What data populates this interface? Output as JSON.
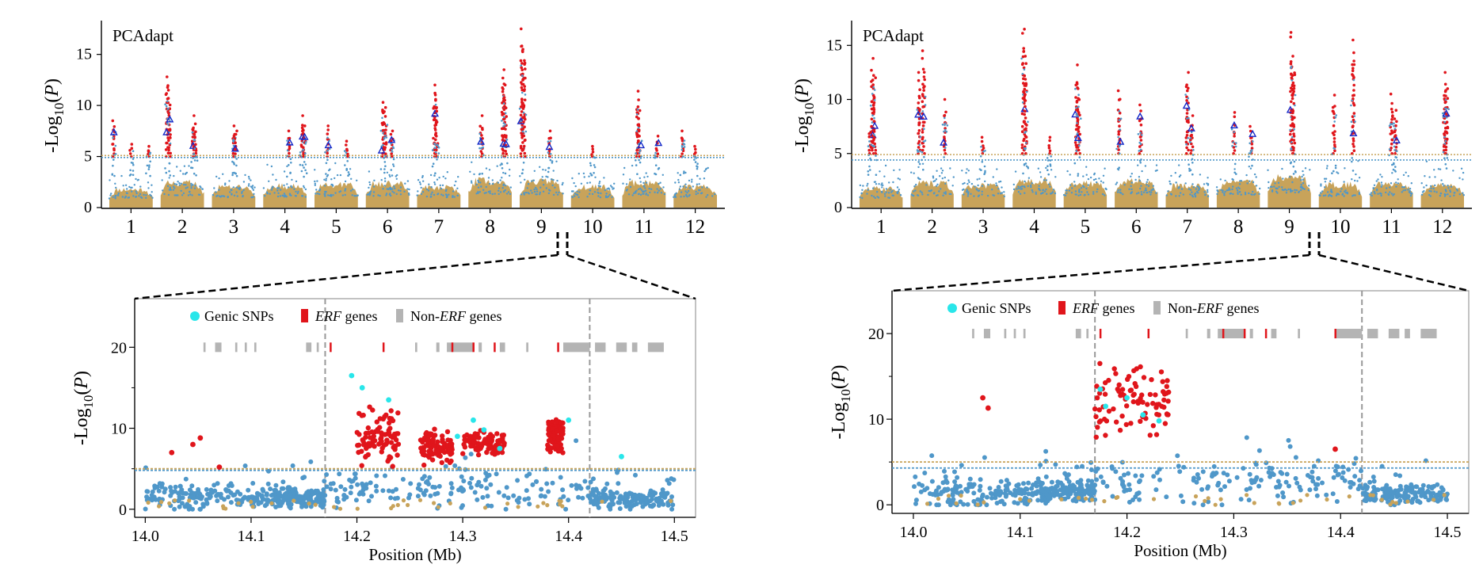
{
  "colors": {
    "background_snp": "#c8a35a",
    "snp": "#4f97c9",
    "significant": "#e0151b",
    "candidate_triangle": "#1428c8",
    "genic_snp": "#29e6ea",
    "erf_gene": "#e0151b",
    "non_erf_gene": "#b4b4b4",
    "threshold_blue": "#4f97c9",
    "threshold_tan": "#c8a35a",
    "boundary": "#999999"
  },
  "chart_data": [
    {
      "id": "left-manhattan",
      "type": "scatter",
      "title": "PCAdapt",
      "ylabel": "-Log10(P)",
      "ylim": [
        0,
        18
      ],
      "y_ticks": [
        0,
        5,
        10,
        15
      ],
      "x_tick_labels": [
        "1",
        "2",
        "3",
        "4",
        "5",
        "6",
        "7",
        "8",
        "9",
        "10",
        "11",
        "12"
      ],
      "thresholds": [
        4.9,
        5.1
      ],
      "chromosomes": [
        {
          "label": "1",
          "band": 1.75,
          "peaks": [
            [
              0.1,
              8.5
            ],
            [
              0.5,
              6.2
            ],
            [
              0.9,
              6.0
            ]
          ]
        },
        {
          "label": "2",
          "band": 2.4,
          "peaks": [
            [
              0.15,
              12.8
            ],
            [
              0.2,
              11.5
            ],
            [
              0.75,
              9.0
            ],
            [
              0.8,
              8.2
            ]
          ]
        },
        {
          "label": "3",
          "band": 2.0,
          "peaks": [
            [
              0.5,
              8.0
            ],
            [
              0.55,
              7.5
            ]
          ]
        },
        {
          "label": "4",
          "band": 2.1,
          "peaks": [
            [
              0.6,
              7.5
            ],
            [
              0.9,
              9.0
            ],
            [
              0.95,
              8.0
            ]
          ]
        },
        {
          "label": "5",
          "band": 2.2,
          "peaks": [
            [
              0.3,
              8.0
            ],
            [
              0.75,
              6.5
            ]
          ]
        },
        {
          "label": "6",
          "band": 2.3,
          "peaks": [
            [
              0.4,
              10.3
            ],
            [
              0.45,
              9.8
            ],
            [
              0.6,
              7.5
            ]
          ]
        },
        {
          "label": "7",
          "band": 2.0,
          "peaks": [
            [
              0.4,
              12.0
            ],
            [
              0.45,
              10.5
            ]
          ]
        },
        {
          "label": "8",
          "band": 2.6,
          "peaks": [
            [
              0.3,
              9.0
            ],
            [
              0.8,
              13.5
            ],
            [
              0.85,
              12.0
            ]
          ]
        },
        {
          "label": "9",
          "band": 2.5,
          "peaks": [
            [
              0.05,
              17.5
            ],
            [
              0.1,
              15.5
            ],
            [
              0.7,
              7.5
            ]
          ]
        },
        {
          "label": "10",
          "band": 2.0,
          "peaks": [
            [
              0.5,
              6.0
            ]
          ]
        },
        {
          "label": "11",
          "band": 2.4,
          "peaks": [
            [
              0.35,
              11.4
            ],
            [
              0.4,
              9.5
            ],
            [
              0.8,
              7.0
            ]
          ]
        },
        {
          "label": "12",
          "band": 2.0,
          "peaks": [
            [
              0.2,
              7.5
            ],
            [
              0.5,
              6.0
            ]
          ]
        }
      ]
    },
    {
      "id": "right-manhattan",
      "type": "scatter",
      "title": "PCAdapt",
      "ylabel": "-Log10(P)",
      "ylim": [
        0,
        17
      ],
      "y_ticks": [
        0,
        5,
        10,
        15
      ],
      "x_tick_labels": [
        "1",
        "2",
        "3",
        "4",
        "5",
        "6",
        "7",
        "8",
        "9",
        "10",
        "11",
        "12"
      ],
      "thresholds": [
        4.4,
        4.9
      ],
      "chromosomes": [
        {
          "label": "1",
          "band": 1.75,
          "peaks": [
            [
              0.3,
              13.8
            ],
            [
              0.35,
              12.0
            ],
            [
              0.25,
              7.5
            ]
          ]
        },
        {
          "label": "2",
          "band": 2.2,
          "peaks": [
            [
              0.2,
              12.5
            ],
            [
              0.3,
              14.5
            ],
            [
              0.8,
              10.0
            ]
          ]
        },
        {
          "label": "3",
          "band": 2.0,
          "peaks": [
            [
              0.5,
              6.5
            ]
          ]
        },
        {
          "label": "4",
          "band": 2.5,
          "peaks": [
            [
              0.25,
              16.5
            ],
            [
              0.3,
              14.0
            ],
            [
              0.85,
              6.5
            ]
          ]
        },
        {
          "label": "5",
          "band": 2.2,
          "peaks": [
            [
              0.3,
              13.2
            ],
            [
              0.35,
              11.0
            ]
          ]
        },
        {
          "label": "6",
          "band": 2.4,
          "peaks": [
            [
              0.1,
              10.8
            ],
            [
              0.6,
              9.5
            ]
          ]
        },
        {
          "label": "7",
          "band": 2.0,
          "peaks": [
            [
              0.5,
              12.5
            ],
            [
              0.6,
              8.5
            ]
          ]
        },
        {
          "label": "8",
          "band": 2.3,
          "peaks": [
            [
              0.4,
              8.8
            ],
            [
              0.8,
              7.5
            ]
          ]
        },
        {
          "label": "9",
          "band": 2.7,
          "peaks": [
            [
              0.55,
              16.2
            ],
            [
              0.6,
              14.0
            ]
          ]
        },
        {
          "label": "10",
          "band": 2.1,
          "peaks": [
            [
              0.35,
              10.4
            ],
            [
              0.8,
              15.5
            ]
          ]
        },
        {
          "label": "11",
          "band": 2.2,
          "peaks": [
            [
              0.5,
              10.5
            ],
            [
              0.6,
              9.0
            ]
          ]
        },
        {
          "label": "12",
          "band": 2.0,
          "peaks": [
            [
              0.55,
              12.5
            ],
            [
              0.6,
              11.0
            ]
          ]
        }
      ]
    },
    {
      "id": "left-zoom",
      "type": "scatter",
      "xlabel": "Position (Mb)",
      "ylabel": "-Log10(P)",
      "xlim": [
        13.99,
        14.52
      ],
      "ylim": [
        -1,
        26
      ],
      "x_ticks": [
        14.0,
        14.1,
        14.2,
        14.3,
        14.4,
        14.5
      ],
      "x_tick_labels": [
        "14.0",
        "14.1",
        "14.2",
        "14.3",
        "14.4",
        "14.5"
      ],
      "y_ticks": [
        0,
        10,
        20
      ],
      "thresholds": [
        4.8,
        5.0
      ],
      "boundaries": [
        14.17,
        14.42
      ],
      "legend": [
        "Genic SNPs",
        "ERF genes",
        "Non-ERF genes"
      ],
      "legend_italic": [
        "",
        "ERF",
        "ERF"
      ],
      "legend_plain": [
        "Genic SNPs",
        " genes",
        " genes"
      ],
      "legend_prefix": [
        "",
        "",
        "Non-"
      ],
      "erf_genes": [
        14.175,
        14.225,
        14.29,
        14.31,
        14.33,
        14.39
      ],
      "non_erf_genes": [
        [
          14.055,
          14.057
        ],
        [
          14.066,
          14.072
        ],
        [
          14.085,
          14.087
        ],
        [
          14.094,
          14.096
        ],
        [
          14.103,
          14.105
        ],
        [
          14.152,
          14.157
        ],
        [
          14.162,
          14.164
        ],
        [
          14.255,
          14.257
        ],
        [
          14.275,
          14.278
        ],
        [
          14.285,
          14.31
        ],
        [
          14.315,
          14.318
        ],
        [
          14.335,
          14.34
        ],
        [
          14.36,
          14.362
        ],
        [
          14.395,
          14.42
        ],
        [
          14.425,
          14.435
        ],
        [
          14.445,
          14.455
        ],
        [
          14.46,
          14.465
        ],
        [
          14.475,
          14.49
        ]
      ],
      "significant_clusters": [
        [
          14.2,
          14.24,
          8.8,
          2.5
        ],
        [
          14.26,
          14.29,
          7.5,
          1.6
        ],
        [
          14.3,
          14.34,
          8.2,
          1.2
        ],
        [
          14.38,
          14.395,
          9.0,
          1.5
        ]
      ],
      "genic_points": [
        [
          14.195,
          16.5
        ],
        [
          14.205,
          15.0
        ],
        [
          14.23,
          13.5
        ],
        [
          14.295,
          9.0
        ],
        [
          14.31,
          11.0
        ],
        [
          14.32,
          9.8
        ],
        [
          14.335,
          7.5
        ],
        [
          14.4,
          11.0
        ],
        [
          14.45,
          6.5
        ]
      ],
      "red_outliers": [
        [
          14.025,
          7.0
        ],
        [
          14.045,
          8.0
        ],
        [
          14.052,
          8.8
        ],
        [
          14.07,
          5.2
        ]
      ]
    },
    {
      "id": "right-zoom",
      "type": "scatter",
      "xlabel": "Position (Mb)",
      "ylabel": "-Log10(P)",
      "xlim": [
        13.98,
        14.52
      ],
      "ylim": [
        -1,
        25
      ],
      "x_ticks": [
        14.0,
        14.1,
        14.2,
        14.3,
        14.4,
        14.5
      ],
      "x_tick_labels": [
        "14.0",
        "14.1",
        "14.2",
        "14.3",
        "14.4",
        "14.5"
      ],
      "y_ticks": [
        0,
        10,
        20
      ],
      "thresholds": [
        4.3,
        5.0
      ],
      "boundaries": [
        14.17,
        14.42
      ],
      "legend": [
        "Genic SNPs",
        "ERF genes",
        "Non-ERF genes"
      ],
      "legend_italic": [
        "",
        "ERF",
        "ERF"
      ],
      "legend_plain": [
        "Genic SNPs",
        " genes",
        " genes"
      ],
      "legend_prefix": [
        "",
        "",
        "Non-"
      ],
      "erf_genes": [
        14.175,
        14.22,
        14.29,
        14.31,
        14.33,
        14.395
      ],
      "non_erf_genes": [
        [
          14.055,
          14.057
        ],
        [
          14.066,
          14.072
        ],
        [
          14.085,
          14.087
        ],
        [
          14.094,
          14.096
        ],
        [
          14.103,
          14.105
        ],
        [
          14.152,
          14.157
        ],
        [
          14.162,
          14.164
        ],
        [
          14.255,
          14.257
        ],
        [
          14.275,
          14.278
        ],
        [
          14.285,
          14.31
        ],
        [
          14.315,
          14.318
        ],
        [
          14.335,
          14.34
        ],
        [
          14.36,
          14.362
        ],
        [
          14.395,
          14.42
        ],
        [
          14.425,
          14.435
        ],
        [
          14.445,
          14.455
        ],
        [
          14.46,
          14.465
        ],
        [
          14.475,
          14.49
        ]
      ],
      "significant_clusters": [
        [
          14.17,
          14.24,
          12.0,
          3.0
        ]
      ],
      "genic_points": [
        [
          14.175,
          13.5
        ],
        [
          14.18,
          11.5
        ],
        [
          14.2,
          12.5
        ],
        [
          14.215,
          10.5
        ],
        [
          14.23,
          9.8
        ]
      ],
      "red_outliers": [
        [
          14.065,
          12.5
        ],
        [
          14.07,
          11.3
        ],
        [
          14.395,
          6.5
        ]
      ]
    }
  ]
}
